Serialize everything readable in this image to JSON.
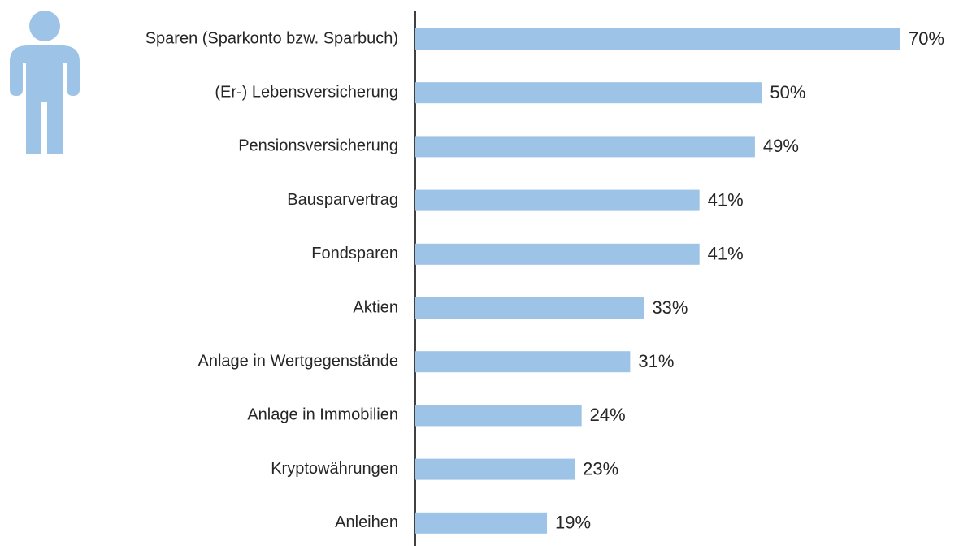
{
  "chart_data": {
    "type": "bar",
    "orientation": "horizontal",
    "categories": [
      "Sparen (Sparkonto bzw. Sparbuch)",
      "(Er-) Lebensversicherung",
      "Pensionsversicherung",
      "Bausparvertrag",
      "Fondsparen",
      "Aktien",
      "Anlage in Wertgegenstände",
      "Anlage in Immobilien",
      "Kryptowährungen",
      "Anleihen"
    ],
    "values": [
      70,
      50,
      49,
      41,
      41,
      33,
      31,
      24,
      23,
      19
    ],
    "value_labels": [
      "70%",
      "50%",
      "49%",
      "41%",
      "41%",
      "33%",
      "31%",
      "24%",
      "23%",
      "19%"
    ],
    "color": "#9dc3e6",
    "xlim": [
      0,
      70
    ]
  }
}
